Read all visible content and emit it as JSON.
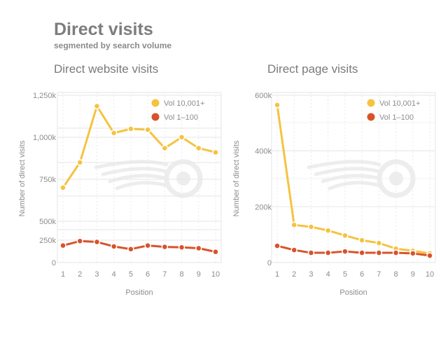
{
  "header": {
    "title": "Direct visits",
    "subtitle": "segmented by search volume"
  },
  "colors": {
    "high_volume": "#f5c340",
    "low_volume": "#d8532a",
    "grid": "#e6e6e6",
    "watermark": "#ececec"
  },
  "chart_data": [
    {
      "type": "line",
      "title": "Direct website visits",
      "xlabel": "Position",
      "ylabel": "Number of direct visits",
      "x": [
        1,
        2,
        3,
        4,
        5,
        6,
        7,
        8,
        9,
        10
      ],
      "xlim": [
        1,
        10
      ],
      "axis_break": true,
      "ylim_lower": [
        0,
        250000
      ],
      "ylim_upper": [
        500000,
        1250000
      ],
      "y_ticks": [
        {
          "value": 0,
          "label": "0"
        },
        {
          "value": 250000,
          "label": "250k"
        },
        {
          "value": 500000,
          "label": "500k"
        },
        {
          "value": 750000,
          "label": "750k"
        },
        {
          "value": 1000000,
          "label": "1,000k"
        },
        {
          "value": 1250000,
          "label": "1,250k"
        }
      ],
      "legend_position": "top-right",
      "series": [
        {
          "name": "Vol 10,001+",
          "color": "#f5c340",
          "values": [
            700000,
            850000,
            1185000,
            1025000,
            1050000,
            1045000,
            935000,
            1000000,
            935000,
            910000
          ]
        },
        {
          "name": "Vol 1–100",
          "color": "#d8532a",
          "values": [
            190000,
            240000,
            230000,
            180000,
            150000,
            190000,
            175000,
            170000,
            160000,
            120000
          ]
        }
      ]
    },
    {
      "type": "line",
      "title": "Direct page visits",
      "xlabel": "Position",
      "ylabel": "Number of direct visits",
      "x": [
        1,
        2,
        3,
        4,
        5,
        6,
        7,
        8,
        9,
        10
      ],
      "xlim": [
        1,
        10
      ],
      "ylim": [
        0,
        600000
      ],
      "y_ticks": [
        {
          "value": 0,
          "label": "0"
        },
        {
          "value": 200000,
          "label": "200k"
        },
        {
          "value": 400000,
          "label": "400k"
        },
        {
          "value": 600000,
          "label": "600k"
        }
      ],
      "legend_position": "top-right",
      "series": [
        {
          "name": "Vol 10,001+",
          "color": "#f5c340",
          "values": [
            565000,
            135000,
            128000,
            115000,
            97000,
            80000,
            70000,
            50000,
            42000,
            33000
          ]
        },
        {
          "name": "Vol 1–100",
          "color": "#d8532a",
          "values": [
            60000,
            45000,
            35000,
            35000,
            40000,
            35000,
            35000,
            35000,
            33000,
            25000
          ]
        }
      ]
    }
  ]
}
